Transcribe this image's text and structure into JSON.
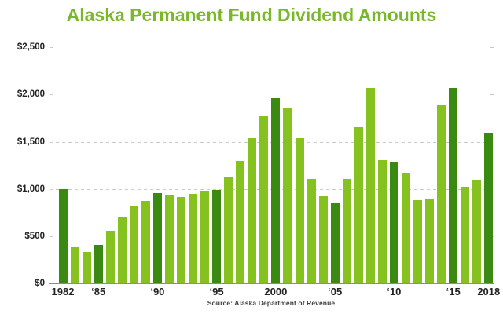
{
  "colors": {
    "title": "#79b829",
    "bar_light": "#85c11f",
    "bar_dark": "#3a8a12",
    "axis": "#8c8c8c",
    "grid": "#c9c9c9",
    "label": "#222222",
    "source_text": "#3f3f3f",
    "background": "#ffffff"
  },
  "chart_data": {
    "type": "bar",
    "title": "Alaska Permanent Fund Dividend Amounts",
    "source": "Source: Alaska Department of Revenue",
    "xlabel": "",
    "ylabel": "",
    "ylim": [
      0,
      2500
    ],
    "grid": "dashed horizontal gridlines at $1,000 and $1,500; end ticks at other levels",
    "legend": "none",
    "categories": [
      1982,
      1983,
      1984,
      1985,
      1986,
      1987,
      1988,
      1989,
      1990,
      1991,
      1992,
      1993,
      1994,
      1995,
      1996,
      1997,
      1998,
      1999,
      2000,
      2001,
      2002,
      2003,
      2004,
      2005,
      2006,
      2007,
      2008,
      2009,
      2010,
      2011,
      2012,
      2013,
      2014,
      2015,
      2016,
      2017,
      2018
    ],
    "values": [
      1000.0,
      386.15,
      331.29,
      404.0,
      556.26,
      708.19,
      826.93,
      873.16,
      952.63,
      931.34,
      915.84,
      949.46,
      983.9,
      990.3,
      1130.68,
      1296.54,
      1540.88,
      1769.84,
      1963.86,
      1850.28,
      1540.76,
      1107.56,
      919.84,
      845.76,
      1106.96,
      1654.0,
      2069.0,
      1305.0,
      1281.0,
      1174.0,
      878.0,
      900.0,
      1884.0,
      2072.0,
      1022.0,
      1100.0,
      1600.0
    ],
    "highlight_years": [
      1982,
      1985,
      1990,
      1995,
      2000,
      2005,
      2010,
      2015,
      2018
    ],
    "x_tick_labels": [
      {
        "year": 1982,
        "label": "1982"
      },
      {
        "year": 1985,
        "label": "‘85"
      },
      {
        "year": 1990,
        "label": "‘90"
      },
      {
        "year": 1995,
        "label": "‘95"
      },
      {
        "year": 2000,
        "label": "2000"
      },
      {
        "year": 2005,
        "label": "‘05"
      },
      {
        "year": 2010,
        "label": "‘10"
      },
      {
        "year": 2015,
        "label": "‘15"
      },
      {
        "year": 2018,
        "label": "2018"
      }
    ],
    "y_ticks": [
      {
        "value": 0,
        "label": "$0"
      },
      {
        "value": 500,
        "label": "$500"
      },
      {
        "value": 1000,
        "label": "$1,000"
      },
      {
        "value": 1500,
        "label": "$1,500"
      },
      {
        "value": 2000,
        "label": "$2,000"
      },
      {
        "value": 2500,
        "label": "$2,500"
      }
    ],
    "dashed_gridline_values": [
      1000,
      1500
    ]
  }
}
